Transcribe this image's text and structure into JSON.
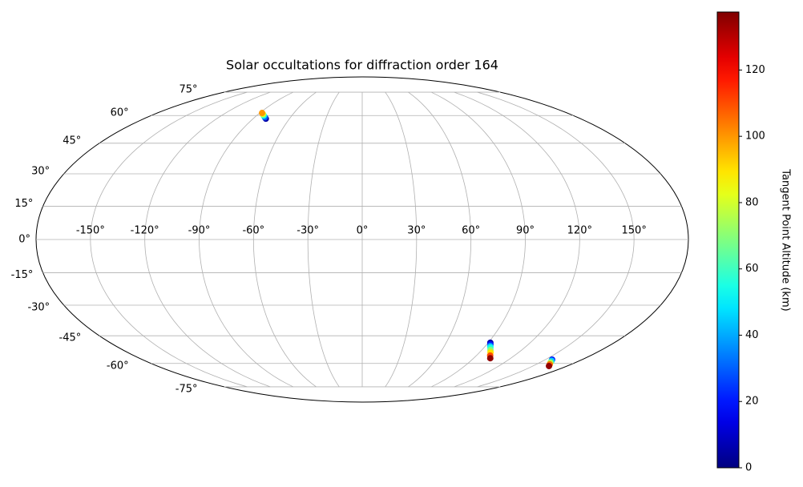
{
  "chart_data": {
    "type": "scatter",
    "projection": "mollweide",
    "title": "Solar occultations for diffraction order 164",
    "x": [
      -79.5,
      -81.5,
      -84,
      -86,
      -88,
      91.5,
      92.6,
      93.6,
      94.7,
      96.5,
      98.4,
      100.8,
      103.4,
      155.5,
      157,
      159,
      161.5,
      164.1
    ],
    "y": [
      58.2,
      59,
      60,
      60.8,
      61.5,
      -48.6,
      -49.5,
      -50.4,
      -51.2,
      -52.5,
      -53.8,
      -55.5,
      -57.0,
      -57.8,
      -58.5,
      -59.5,
      -60.5,
      -61.5
    ],
    "altitude": [
      5,
      30,
      55,
      80,
      100,
      5,
      20,
      40,
      55,
      70,
      90,
      110,
      135,
      20,
      45,
      75,
      105,
      135
    ],
    "colormap": "jet",
    "xlim": [
      -180,
      180
    ],
    "ylim": [
      -90,
      90
    ],
    "xticks": [
      {
        "value": -150,
        "label": "-150°"
      },
      {
        "value": -120,
        "label": "-120°"
      },
      {
        "value": -90,
        "label": "-90°"
      },
      {
        "value": -60,
        "label": "-60°"
      },
      {
        "value": -30,
        "label": "-30°"
      },
      {
        "value": 0,
        "label": "0°"
      },
      {
        "value": 30,
        "label": "30°"
      },
      {
        "value": 60,
        "label": "60°"
      },
      {
        "value": 90,
        "label": "90°"
      },
      {
        "value": 120,
        "label": "120°"
      },
      {
        "value": 150,
        "label": "150°"
      }
    ],
    "yticks": [
      {
        "value": -75,
        "label": "-75°"
      },
      {
        "value": -60,
        "label": "-60°"
      },
      {
        "value": -45,
        "label": "-45°"
      },
      {
        "value": -30,
        "label": "-30°"
      },
      {
        "value": -15,
        "label": "-15°"
      },
      {
        "value": 0,
        "label": "0°"
      },
      {
        "value": 15,
        "label": "15°"
      },
      {
        "value": 30,
        "label": "30°"
      },
      {
        "value": 45,
        "label": "45°"
      },
      {
        "value": 60,
        "label": "60°"
      },
      {
        "value": 75,
        "label": "75°"
      }
    ],
    "grid": true,
    "colorbar": {
      "label": "Tangent Point Altitude (km)",
      "lim": [
        0,
        137.5
      ],
      "ticks": [
        0,
        20,
        40,
        60,
        80,
        100,
        120
      ]
    }
  }
}
